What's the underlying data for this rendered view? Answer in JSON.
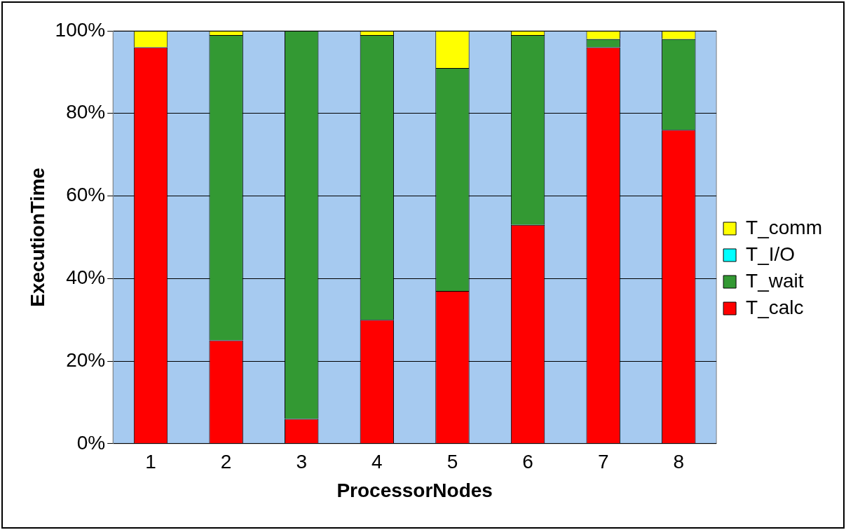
{
  "chart_data": {
    "type": "bar",
    "stacked": true,
    "xlabel": "ProcessorNodes",
    "ylabel": "ExecutionTime",
    "categories": [
      "1",
      "2",
      "3",
      "4",
      "5",
      "6",
      "7",
      "8"
    ],
    "series": [
      {
        "name": "T_calc",
        "color": "#ff0000",
        "values": [
          96,
          25,
          6,
          30,
          37,
          53,
          96,
          76
        ]
      },
      {
        "name": "T_wait",
        "color": "#339933",
        "values": [
          0,
          74,
          94,
          69,
          54,
          46,
          2,
          22
        ]
      },
      {
        "name": "T_I/O",
        "color": "#00ffff",
        "values": [
          0,
          0,
          0,
          0,
          0,
          0,
          0,
          0
        ]
      },
      {
        "name": "T_comm",
        "color": "#ffff00",
        "values": [
          4,
          1,
          0,
          1,
          9,
          1,
          2,
          2
        ]
      }
    ],
    "ylim": [
      0,
      100
    ],
    "yticks": [
      {
        "value": 0,
        "label": "0%"
      },
      {
        "value": 20,
        "label": "20%"
      },
      {
        "value": 40,
        "label": "40%"
      },
      {
        "value": 60,
        "label": "60%"
      },
      {
        "value": 80,
        "label": "80%"
      },
      {
        "value": 100,
        "label": "100%"
      }
    ],
    "grid": "y",
    "legend": "right"
  }
}
